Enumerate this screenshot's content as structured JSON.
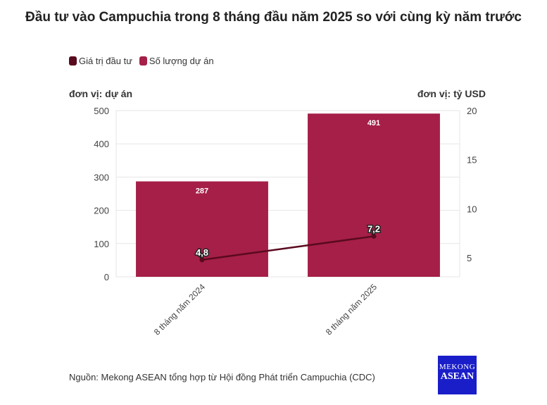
{
  "chart_data": {
    "type": "bar+line",
    "title": "Đầu tư vào Campuchia trong 8 tháng đầu năm 2025 so với cùng kỳ năm trước",
    "categories": [
      "8 tháng năm 2024",
      "8 tháng năm 2025"
    ],
    "series": [
      {
        "name": "Giá trị đầu tư",
        "type": "line",
        "axis": "right",
        "color": "#5a0a1e",
        "values": [
          4.8,
          7.2
        ],
        "labels": [
          "4,8",
          "7,2"
        ]
      },
      {
        "name": "Số lượng dự án",
        "type": "bar",
        "axis": "left",
        "color": "#a51f48",
        "values": [
          287,
          491
        ],
        "labels": [
          "287",
          "491"
        ]
      }
    ],
    "ylabel_left": "đơn vị: dự án",
    "ylabel_right": "đơn vị: tỷ USD",
    "ylim_left": [
      0,
      500
    ],
    "yticks_left": [
      0,
      100,
      200,
      300,
      400,
      500
    ],
    "ylim_right": [
      3.07,
      20
    ],
    "yticks_right": [
      5,
      10,
      15,
      20
    ],
    "grid": true,
    "legend_position": "top-left"
  },
  "source": "Nguồn: Mekong ASEAN tổng hợp từ Hội đồng Phát triển Campuchia (CDC)",
  "logo": {
    "line1": "MEKONG",
    "line2": "ASEAN"
  }
}
